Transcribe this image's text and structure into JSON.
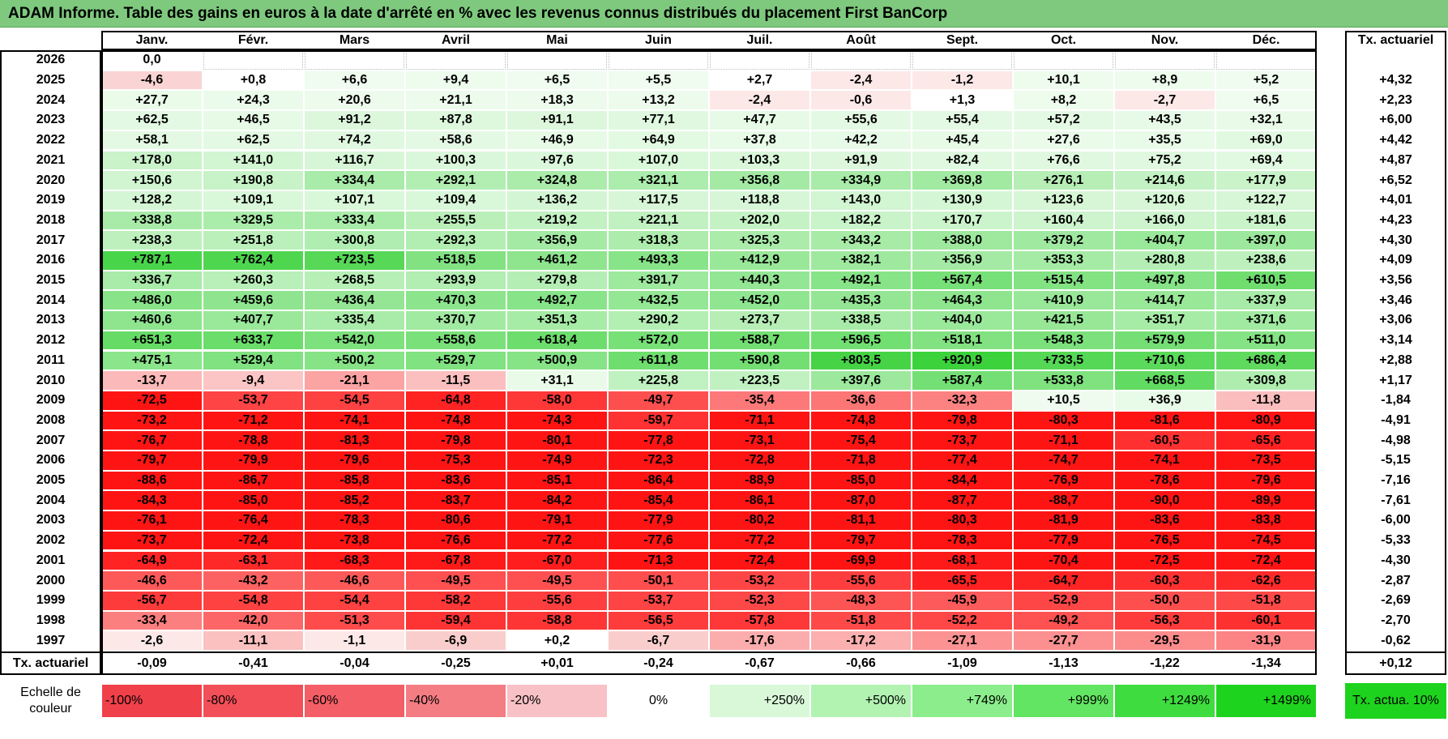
{
  "title": "ADAM Informe. Table des gains en euros à la date d'arrêté en % avec les revenus connus distribués du placement First BanCorp",
  "months": [
    "Janv.",
    "Févr.",
    "Mars",
    "Avril",
    "Mai",
    "Juin",
    "Juil.",
    "Août",
    "Sept.",
    "Oct.",
    "Nov.",
    "Déc."
  ],
  "rate_header": "Tx. actuariel",
  "rows": [
    {
      "year": "2026",
      "values": [
        "0,0",
        "",
        "",
        "",
        "",
        "",
        "",
        "",
        "",
        "",
        "",
        ""
      ],
      "rate": ""
    },
    {
      "year": "2025",
      "values": [
        "-4,6",
        "+0,8",
        "+6,6",
        "+9,4",
        "+6,5",
        "+5,5",
        "+2,7",
        "-2,4",
        "-1,2",
        "+10,1",
        "+8,9",
        "+5,2"
      ],
      "rate": "+4,32"
    },
    {
      "year": "2024",
      "values": [
        "+27,7",
        "+24,3",
        "+20,6",
        "+21,1",
        "+18,3",
        "+13,2",
        "-2,4",
        "-0,6",
        "+1,3",
        "+8,2",
        "-2,7",
        "+6,5"
      ],
      "rate": "+2,23"
    },
    {
      "year": "2023",
      "values": [
        "+62,5",
        "+46,5",
        "+91,2",
        "+87,8",
        "+91,1",
        "+77,1",
        "+47,7",
        "+55,6",
        "+55,4",
        "+57,2",
        "+43,5",
        "+32,1"
      ],
      "rate": "+6,00"
    },
    {
      "year": "2022",
      "values": [
        "+58,1",
        "+62,5",
        "+74,2",
        "+58,6",
        "+46,9",
        "+64,9",
        "+37,8",
        "+42,2",
        "+45,4",
        "+27,6",
        "+35,5",
        "+69,0"
      ],
      "rate": "+4,42"
    },
    {
      "year": "2021",
      "values": [
        "+178,0",
        "+141,0",
        "+116,7",
        "+100,3",
        "+97,6",
        "+107,0",
        "+103,3",
        "+91,9",
        "+82,4",
        "+76,6",
        "+75,2",
        "+69,4"
      ],
      "rate": "+4,87"
    },
    {
      "year": "2020",
      "values": [
        "+150,6",
        "+190,8",
        "+334,4",
        "+292,1",
        "+324,8",
        "+321,1",
        "+356,8",
        "+334,9",
        "+369,8",
        "+276,1",
        "+214,6",
        "+177,9"
      ],
      "rate": "+6,52"
    },
    {
      "year": "2019",
      "values": [
        "+128,2",
        "+109,1",
        "+107,1",
        "+109,4",
        "+136,2",
        "+117,5",
        "+118,8",
        "+143,0",
        "+130,9",
        "+123,6",
        "+120,6",
        "+122,7"
      ],
      "rate": "+4,01"
    },
    {
      "year": "2018",
      "values": [
        "+338,8",
        "+329,5",
        "+333,4",
        "+255,5",
        "+219,2",
        "+221,1",
        "+202,0",
        "+182,2",
        "+170,7",
        "+160,4",
        "+166,0",
        "+181,6"
      ],
      "rate": "+4,23"
    },
    {
      "year": "2017",
      "values": [
        "+238,3",
        "+251,8",
        "+300,8",
        "+292,3",
        "+356,9",
        "+318,3",
        "+325,3",
        "+343,2",
        "+388,0",
        "+379,2",
        "+404,7",
        "+397,0"
      ],
      "rate": "+4,30"
    },
    {
      "year": "2016",
      "values": [
        "+787,1",
        "+762,4",
        "+723,5",
        "+518,5",
        "+461,2",
        "+493,3",
        "+412,9",
        "+382,1",
        "+356,9",
        "+353,3",
        "+280,8",
        "+238,6"
      ],
      "rate": "+4,09"
    },
    {
      "year": "2015",
      "values": [
        "+336,7",
        "+260,3",
        "+268,5",
        "+293,9",
        "+279,8",
        "+391,7",
        "+440,3",
        "+492,1",
        "+567,4",
        "+515,4",
        "+497,8",
        "+610,5"
      ],
      "rate": "+3,56"
    },
    {
      "year": "2014",
      "values": [
        "+486,0",
        "+459,6",
        "+436,4",
        "+470,3",
        "+492,7",
        "+432,5",
        "+452,0",
        "+435,3",
        "+464,3",
        "+410,9",
        "+414,7",
        "+337,9"
      ],
      "rate": "+3,46"
    },
    {
      "year": "2013",
      "values": [
        "+460,6",
        "+407,7",
        "+335,4",
        "+370,7",
        "+351,3",
        "+290,2",
        "+273,7",
        "+338,5",
        "+404,0",
        "+421,5",
        "+351,7",
        "+371,6"
      ],
      "rate": "+3,06"
    },
    {
      "year": "2012",
      "values": [
        "+651,3",
        "+633,7",
        "+542,0",
        "+558,6",
        "+618,4",
        "+572,0",
        "+588,7",
        "+596,5",
        "+518,1",
        "+548,3",
        "+579,9",
        "+511,0"
      ],
      "rate": "+3,14"
    },
    {
      "year": "2011",
      "values": [
        "+475,1",
        "+529,4",
        "+500,2",
        "+529,7",
        "+500,9",
        "+611,8",
        "+590,8",
        "+803,5",
        "+920,9",
        "+733,5",
        "+710,6",
        "+686,4"
      ],
      "rate": "+2,88"
    },
    {
      "year": "2010",
      "values": [
        "-13,7",
        "-9,4",
        "-21,1",
        "-11,5",
        "+31,1",
        "+225,8",
        "+223,5",
        "+397,6",
        "+587,4",
        "+533,8",
        "+668,5",
        "+309,8"
      ],
      "rate": "+1,17"
    },
    {
      "year": "2009",
      "values": [
        "-72,5",
        "-53,7",
        "-54,5",
        "-64,8",
        "-58,0",
        "-49,7",
        "-35,4",
        "-36,6",
        "-32,3",
        "+10,5",
        "+36,9",
        "-11,8"
      ],
      "rate": "-1,84"
    },
    {
      "year": "2008",
      "values": [
        "-73,2",
        "-71,2",
        "-74,1",
        "-74,8",
        "-74,3",
        "-59,7",
        "-71,1",
        "-74,8",
        "-79,8",
        "-80,3",
        "-81,6",
        "-80,9"
      ],
      "rate": "-4,91"
    },
    {
      "year": "2007",
      "values": [
        "-76,7",
        "-78,8",
        "-81,3",
        "-79,8",
        "-80,1",
        "-77,8",
        "-73,1",
        "-75,4",
        "-73,7",
        "-71,1",
        "-60,5",
        "-65,6"
      ],
      "rate": "-4,98"
    },
    {
      "year": "2006",
      "values": [
        "-79,7",
        "-79,9",
        "-79,6",
        "-75,3",
        "-74,9",
        "-72,3",
        "-72,8",
        "-71,8",
        "-77,4",
        "-74,7",
        "-74,1",
        "-73,5"
      ],
      "rate": "-5,15"
    },
    {
      "year": "2005",
      "values": [
        "-88,6",
        "-86,7",
        "-85,8",
        "-83,6",
        "-85,1",
        "-86,4",
        "-88,9",
        "-85,0",
        "-84,4",
        "-76,9",
        "-78,6",
        "-79,6"
      ],
      "rate": "-7,16"
    },
    {
      "year": "2004",
      "values": [
        "-84,3",
        "-85,0",
        "-85,2",
        "-83,7",
        "-84,2",
        "-85,4",
        "-86,1",
        "-87,0",
        "-87,7",
        "-88,7",
        "-90,0",
        "-89,9"
      ],
      "rate": "-7,61"
    },
    {
      "year": "2003",
      "values": [
        "-76,1",
        "-76,4",
        "-78,3",
        "-80,6",
        "-79,1",
        "-77,9",
        "-80,2",
        "-81,1",
        "-80,3",
        "-81,9",
        "-83,6",
        "-83,8"
      ],
      "rate": "-6,00"
    },
    {
      "year": "2002",
      "values": [
        "-73,7",
        "-72,4",
        "-73,8",
        "-76,6",
        "-77,2",
        "-77,6",
        "-77,2",
        "-79,7",
        "-78,3",
        "-77,9",
        "-76,5",
        "-74,5"
      ],
      "rate": "-5,33"
    },
    {
      "year": "2001",
      "values": [
        "-64,9",
        "-63,1",
        "-68,3",
        "-67,8",
        "-67,0",
        "-71,3",
        "-72,4",
        "-69,9",
        "-68,1",
        "-70,4",
        "-72,5",
        "-72,4"
      ],
      "rate": "-4,30"
    },
    {
      "year": "2000",
      "values": [
        "-46,6",
        "-43,2",
        "-46,6",
        "-49,5",
        "-49,5",
        "-50,1",
        "-53,2",
        "-55,6",
        "-65,5",
        "-64,7",
        "-60,3",
        "-62,6"
      ],
      "rate": "-2,87"
    },
    {
      "year": "1999",
      "values": [
        "-56,7",
        "-54,8",
        "-54,4",
        "-58,2",
        "-55,6",
        "-53,7",
        "-52,3",
        "-48,3",
        "-45,9",
        "-52,9",
        "-50,0",
        "-51,8"
      ],
      "rate": "-2,69"
    },
    {
      "year": "1998",
      "values": [
        "-33,4",
        "-42,0",
        "-51,3",
        "-59,4",
        "-58,8",
        "-56,5",
        "-57,8",
        "-51,8",
        "-52,2",
        "-49,2",
        "-56,3",
        "-60,1"
      ],
      "rate": "-2,70"
    },
    {
      "year": "1997",
      "values": [
        "-2,6",
        "-11,1",
        "-1,1",
        "-6,9",
        "+0,2",
        "-6,7",
        "-17,6",
        "-17,2",
        "-27,1",
        "-27,7",
        "-29,5",
        "-31,9"
      ],
      "rate": "-0,62"
    }
  ],
  "summary": {
    "label": "Tx. actuariel",
    "values": [
      "-0,09",
      "-0,41",
      "-0,04",
      "-0,25",
      "+0,01",
      "-0,24",
      "-0,67",
      "-0,66",
      "-1,09",
      "-1,13",
      "-1,22",
      "-1,34"
    ],
    "rate": "+0,12"
  },
  "legend": {
    "title": "Echelle de couleur",
    "items": [
      "-100%",
      "-80%",
      "-60%",
      "-40%",
      "-20%",
      "0%",
      "+250%",
      "+500%",
      "+749%",
      "+999%",
      "+1249%",
      "+1499%"
    ],
    "right_label": "Tx. actua. 10%"
  },
  "colors": {
    "title_bg": "#7ec97e",
    "legend": [
      "#f0404a",
      "#f24f58",
      "#f45e66",
      "#f47d84",
      "#f8c1c5",
      "#ffffff",
      "#d8f8d8",
      "#b2f3b2",
      "#8ced8c",
      "#62e562",
      "#3edc3e",
      "#1ed31e"
    ],
    "legend_right": "#1ed31e"
  }
}
